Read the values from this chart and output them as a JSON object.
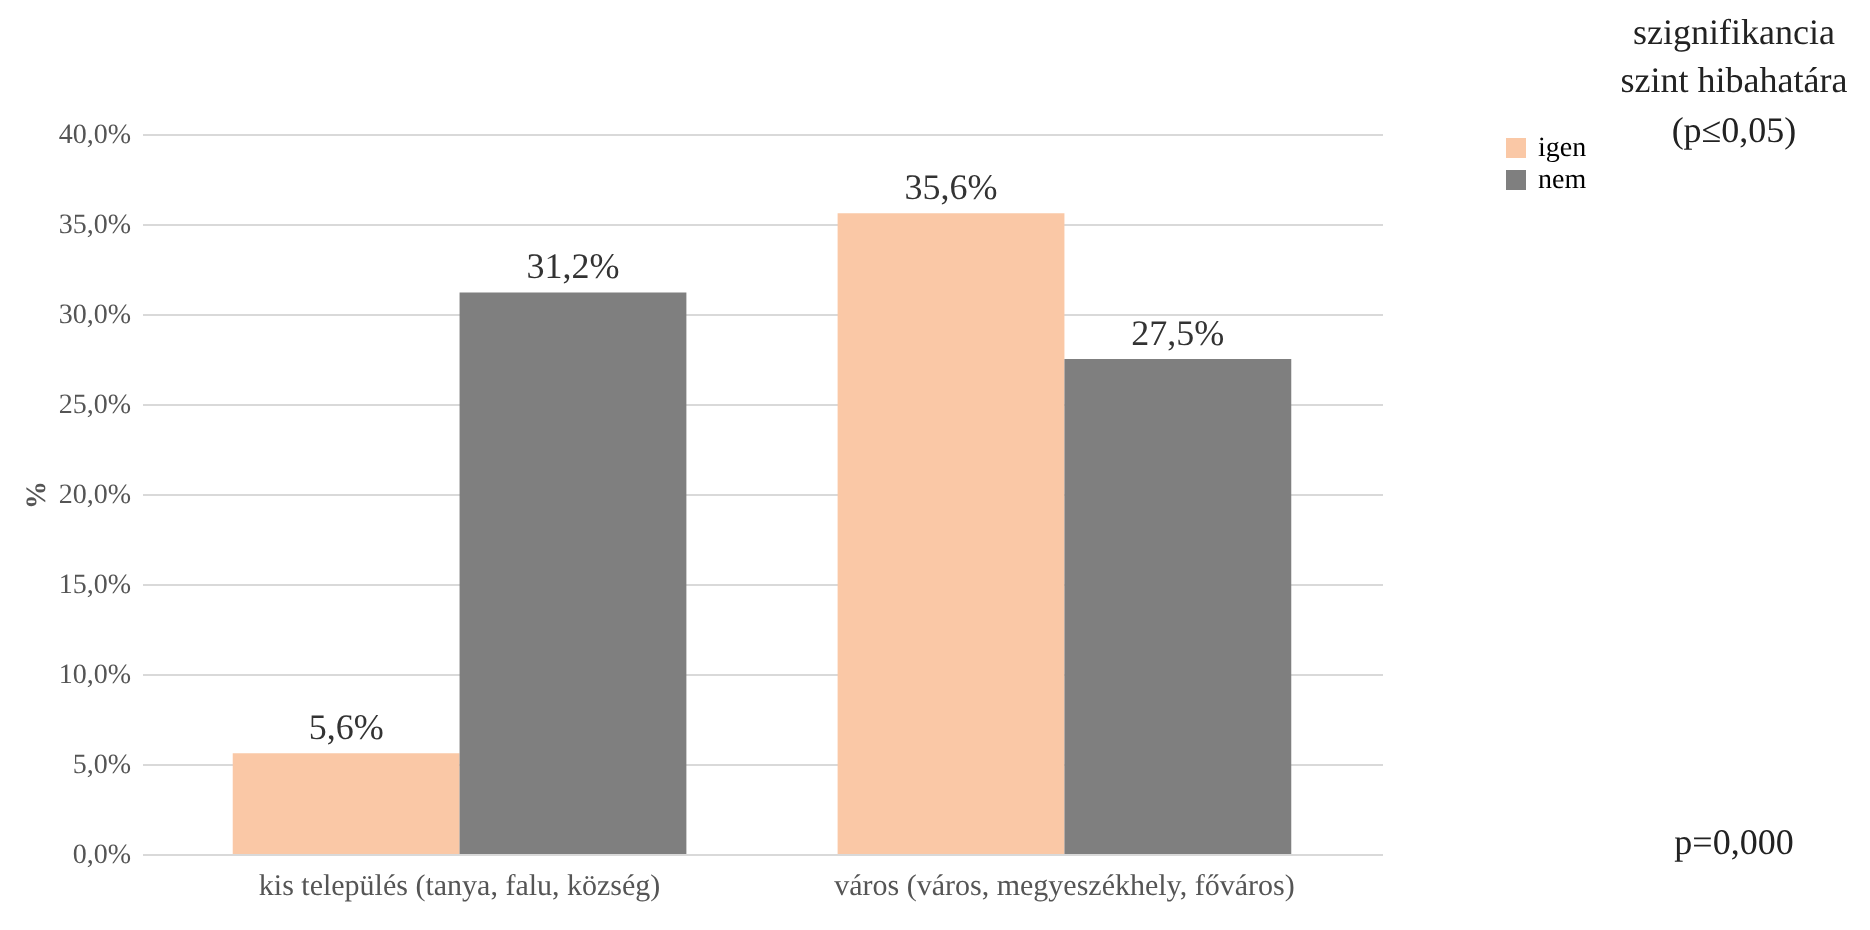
{
  "chart_data": {
    "type": "bar",
    "ylabel": "%",
    "categories": [
      "kis település (tanya, falu, község)",
      "város (város, megyeszékhely, főváros)"
    ],
    "series": [
      {
        "name": "igen",
        "color": "#fac8a6",
        "values": [
          5.6,
          35.6
        ],
        "value_labels": [
          "5,6%",
          "35,6%"
        ]
      },
      {
        "name": "nem",
        "color": "#7f7f7f",
        "values": [
          31.2,
          27.5
        ],
        "value_labels": [
          "31,2%",
          "27,5%"
        ]
      }
    ],
    "ylim": [
      0,
      40
    ],
    "yticks": [
      {
        "value": 0,
        "label": "0,0%"
      },
      {
        "value": 5,
        "label": "5,0%"
      },
      {
        "value": 10,
        "label": "10,0%"
      },
      {
        "value": 15,
        "label": "15,0%"
      },
      {
        "value": 20,
        "label": "20,0%"
      },
      {
        "value": 25,
        "label": "25,0%"
      },
      {
        "value": 30,
        "label": "30,0%"
      },
      {
        "value": 35,
        "label": "35,0%"
      },
      {
        "value": 40,
        "label": "40,0%"
      }
    ],
    "grid": "y",
    "legend": "right",
    "annotations": [
      "szignifikancia szint hibahatára (p≤0,05)",
      "p=0,000"
    ]
  }
}
